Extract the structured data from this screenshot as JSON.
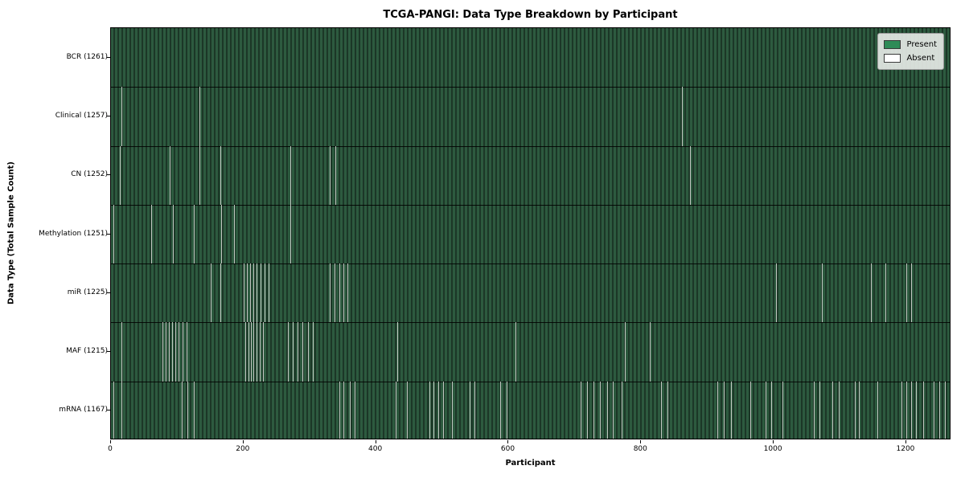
{
  "chart_data": {
    "type": "heatmap",
    "title": "TCGA-PANGI: Data Type Breakdown by Participant",
    "xlabel": "Participant",
    "ylabel": "Data Type (Total Sample Count)",
    "x_axis": {
      "min": 0,
      "max": 1268,
      "ticks": [
        0,
        200,
        400,
        600,
        800,
        1000,
        1200
      ]
    },
    "legend": {
      "entries": [
        {
          "label": "Present",
          "color": "#2e8b57"
        },
        {
          "label": "Absent",
          "color": "#ffffff"
        }
      ]
    },
    "colors": {
      "present_stripe_light": "#2d5a3f",
      "present_stripe_dark": "#1c3727",
      "absent_line": "#c2c9c2",
      "row_separator": "#000000"
    },
    "rows": [
      {
        "name": "BCR",
        "count": 1261,
        "label": "BCR (1261)",
        "absent": []
      },
      {
        "name": "Clinical",
        "count": 1257,
        "label": "Clinical (1257)",
        "absent": [
          16,
          134,
          861
        ]
      },
      {
        "name": "CN",
        "count": 1252,
        "label": "CN (1252)",
        "absent": [
          13,
          89,
          134,
          165,
          271,
          330,
          338,
          873
        ]
      },
      {
        "name": "Methylation",
        "count": 1251,
        "label": "Methylation (1251)",
        "absent": [
          4,
          61,
          93,
          125,
          166,
          186,
          271
        ]
      },
      {
        "name": "miR",
        "count": 1225,
        "label": "miR (1225)",
        "absent": [
          150,
          165,
          200,
          205,
          210,
          215,
          220,
          226,
          232,
          238,
          330,
          337,
          344,
          351,
          357,
          1004,
          1073,
          1146,
          1168,
          1200,
          1207
        ]
      },
      {
        "name": "MAF",
        "count": 1215,
        "label": "MAF (1215)",
        "absent": [
          16,
          77,
          82,
          87,
          92,
          97,
          102,
          108,
          114,
          203,
          207,
          211,
          215,
          219,
          224,
          229,
          267,
          274,
          281,
          289,
          297,
          305,
          432,
          610,
          775,
          813
        ]
      },
      {
        "name": "mRNA",
        "count": 1167,
        "label": "mRNA (1167)",
        "absent": [
          4,
          16,
          107,
          115,
          125,
          344,
          351,
          360,
          368,
          429,
          447,
          480,
          486,
          494,
          501,
          514,
          541,
          549,
          587,
          597,
          709,
          718,
          728,
          738,
          748,
          757,
          770,
          830,
          840,
          915,
          925,
          935,
          964,
          988,
          996,
          1013,
          1061,
          1069,
          1088,
          1098,
          1122,
          1129,
          1156,
          1193,
          1200,
          1207,
          1214,
          1225,
          1241,
          1250,
          1258
        ]
      }
    ]
  }
}
